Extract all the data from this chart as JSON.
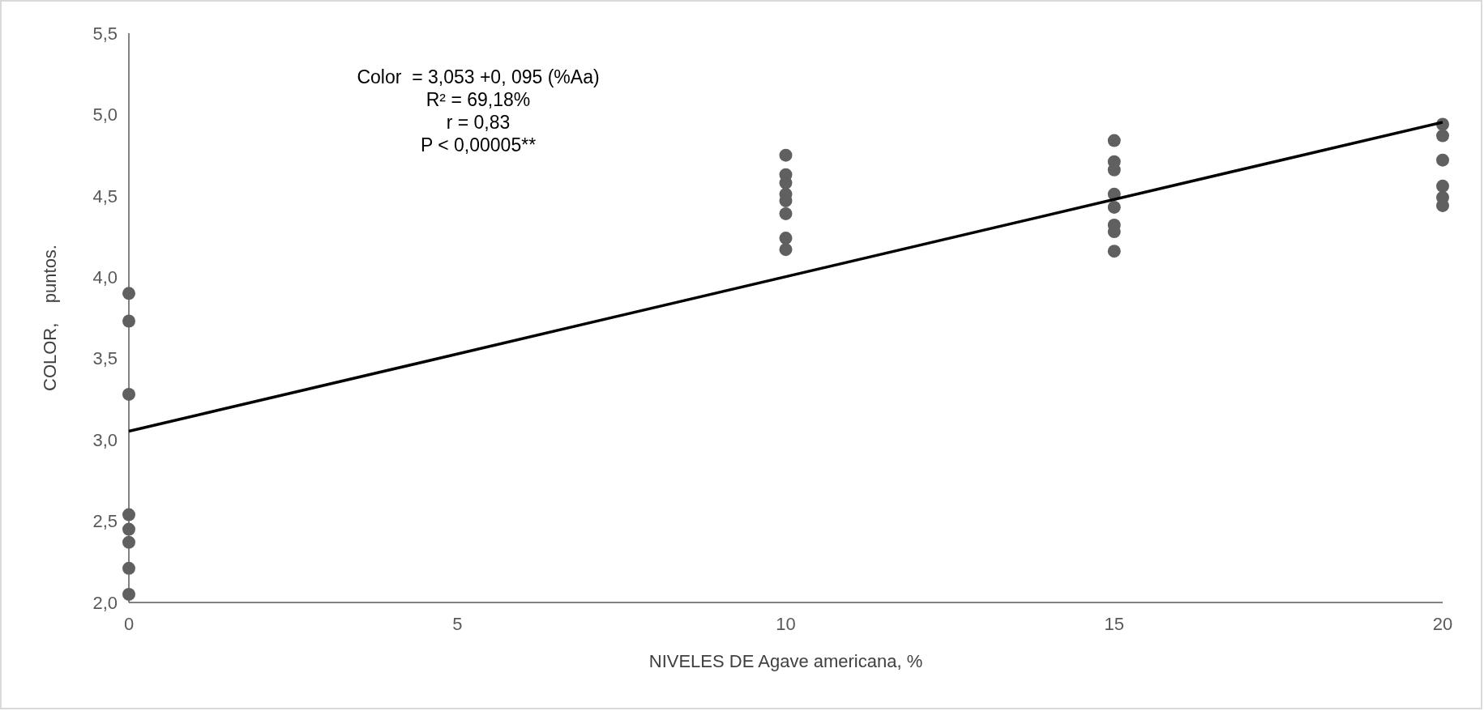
{
  "chart_data": {
    "type": "scatter",
    "xlabel": "NIVELES DE Agave americana, %",
    "ylabel": "COLOR,    puntos.",
    "annotations": [
      "Color  = 3,053 +0, 095 (%Aa)",
      "R² = 69,18%",
      "r = 0,83",
      "P < 0,00005**"
    ],
    "xlim": [
      0,
      20
    ],
    "xticks": [
      0,
      5,
      10,
      15,
      20
    ],
    "ylim": [
      2,
      5.5
    ],
    "yticks": [
      {
        "value": 2,
        "label": "2,0"
      },
      {
        "value": 2.5,
        "label": "2,5"
      },
      {
        "value": 3,
        "label": "3,0"
      },
      {
        "value": 3.5,
        "label": "3,5"
      },
      {
        "value": 4,
        "label": "4,0"
      },
      {
        "value": 4.5,
        "label": "4,5"
      },
      {
        "value": 5,
        "label": "5,0"
      },
      {
        "value": 5.5,
        "label": "5,5"
      }
    ],
    "grid": false,
    "marker": "circle",
    "series": [
      {
        "color": "#606060",
        "x": [
          0,
          0,
          0,
          0,
          0,
          0,
          0,
          0,
          10,
          10,
          10,
          10,
          10,
          10,
          10,
          10,
          15,
          15,
          15,
          15,
          15,
          15,
          15,
          15,
          20,
          20,
          20,
          20,
          20,
          20
        ],
        "values": [
          3.9,
          3.73,
          3.28,
          2.54,
          2.45,
          2.37,
          2.21,
          2.05,
          4.75,
          4.63,
          4.58,
          4.51,
          4.47,
          4.39,
          4.24,
          4.17,
          4.84,
          4.71,
          4.66,
          4.51,
          4.43,
          4.32,
          4.28,
          4.16,
          4.94,
          4.87,
          4.72,
          4.56,
          4.49,
          4.44
        ]
      },
      {
        "type": "line",
        "color": "#000000",
        "x": [
          0,
          20
        ],
        "values": [
          3.053,
          4.953
        ],
        "marker": "none",
        "line_style": "solid"
      }
    ]
  }
}
